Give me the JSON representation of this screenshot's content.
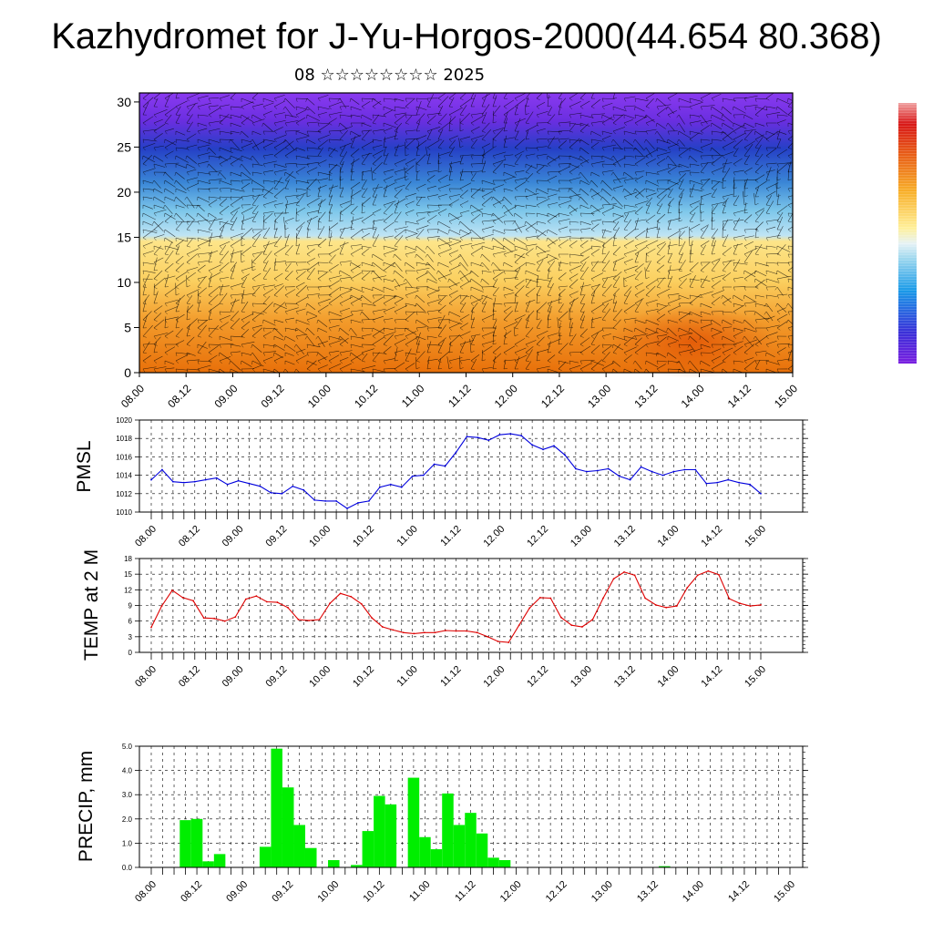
{
  "title": "Kazhydromet for J-Yu-Horgos-2000(44.654 80.368)",
  "date_line": "08 ☆☆☆☆☆☆☆☆ 2025",
  "colors": {
    "pmsl_line": "#0000dd",
    "temp_line": "#dd0000",
    "precip_bar": "#00ee00",
    "axes": "#000000"
  },
  "chart_data": [
    {
      "type": "heatmap",
      "description_of_field": "vertical cross-section with wind vectors",
      "x_tick_labels": [
        "08.00",
        "08.12",
        "09.00",
        "09.12",
        "10.00",
        "10.12",
        "11.00",
        "11.12",
        "12.00",
        "12.12",
        "13.00",
        "13.12",
        "14.00",
        "14.12",
        "15.00"
      ],
      "y_ticks": [
        0,
        5,
        10,
        15,
        20,
        25,
        30
      ],
      "ylim": [
        0,
        31
      ],
      "colorbar": "purple-blue-lightblue-yellow-orange-red",
      "legend_position": "right"
    },
    {
      "type": "line",
      "ylabel": "PMSL",
      "ylim": [
        1010,
        1020
      ],
      "y_ticks": [
        1010,
        1012,
        1014,
        1016,
        1018,
        1020
      ],
      "x_tick_labels": [
        "08.00",
        "08.12",
        "09.00",
        "09.12",
        "10.00",
        "10.12",
        "11.00",
        "11.12",
        "12.00",
        "12.12",
        "13.00",
        "13.12",
        "14.00",
        "14.12",
        "15.00"
      ],
      "values": [
        1013.5,
        1014.6,
        1013.3,
        1013.2,
        1013.3,
        1013.5,
        1013.7,
        1013.0,
        1013.4,
        1013.1,
        1012.8,
        1012.1,
        1012.0,
        1012.8,
        1012.4,
        1011.3,
        1011.2,
        1011.2,
        1010.4,
        1011.0,
        1011.2,
        1012.7,
        1013.0,
        1012.7,
        1013.9,
        1014.0,
        1015.2,
        1015.0,
        1016.5,
        1018.2,
        1018.1,
        1017.8,
        1018.4,
        1018.5,
        1018.3,
        1017.3,
        1016.8,
        1017.2,
        1016.2,
        1014.7,
        1014.4,
        1014.5,
        1014.7,
        1013.9,
        1013.5,
        1014.9,
        1014.4,
        1014.0,
        1014.4,
        1014.6,
        1014.6,
        1013.1,
        1013.2,
        1013.5,
        1013.2,
        1013.0,
        1012.0
      ],
      "grid": true
    },
    {
      "type": "line",
      "ylabel": "TEMP at 2 M",
      "ylim": [
        0,
        18
      ],
      "y_ticks": [
        0,
        3,
        6,
        9,
        12,
        15,
        18
      ],
      "x_tick_labels": [
        "08.00",
        "08.12",
        "09.00",
        "09.12",
        "10.00",
        "10.12",
        "11.00",
        "11.12",
        "12.00",
        "12.12",
        "13.00",
        "13.12",
        "14.00",
        "14.12",
        "15.00"
      ],
      "values": [
        4.8,
        8.9,
        11.9,
        10.5,
        9.9,
        6.6,
        6.5,
        6.0,
        6.8,
        10.2,
        10.8,
        9.7,
        9.6,
        8.6,
        6.3,
        6.1,
        6.3,
        9.4,
        11.3,
        10.7,
        9.3,
        6.6,
        4.9,
        4.3,
        3.8,
        3.6,
        3.8,
        3.8,
        4.2,
        4.1,
        4.1,
        3.8,
        3.0,
        2.1,
        1.9,
        5.2,
        8.5,
        10.5,
        10.4,
        6.7,
        5.2,
        4.9,
        6.3,
        10.4,
        14.1,
        15.4,
        14.8,
        10.4,
        9.1,
        8.6,
        8.9,
        12.4,
        14.8,
        15.6,
        14.9,
        10.3,
        9.4,
        8.9,
        9.1
      ],
      "grid": true
    },
    {
      "type": "bar",
      "ylabel": "PRECIP, mm",
      "ylim": [
        0,
        5
      ],
      "y_ticks": [
        "0.0",
        "1.0",
        "2.0",
        "3.0",
        "4.0",
        "5.0"
      ],
      "x_tick_labels": [
        "08.00",
        "08.12",
        "09.00",
        "09.12",
        "10.00",
        "10.12",
        "11.00",
        "11.12",
        "12.00",
        "12.12",
        "13.00",
        "13.12",
        "14.00",
        "14.12",
        "15.00"
      ],
      "values": [
        0,
        0,
        0,
        1.95,
        2.0,
        0.25,
        0.55,
        0,
        0,
        0,
        0.85,
        4.9,
        3.3,
        1.75,
        0.8,
        0,
        0.3,
        0,
        0.1,
        1.5,
        2.95,
        2.6,
        0,
        3.7,
        1.25,
        0.75,
        3.05,
        1.75,
        2.25,
        1.4,
        0.4,
        0.3,
        0,
        0,
        0,
        0,
        0,
        0,
        0,
        0,
        0,
        0,
        0,
        0,
        0,
        0.05,
        0,
        0.02,
        0,
        0,
        0.02,
        0,
        0,
        0,
        0,
        0,
        0
      ],
      "grid": true
    }
  ]
}
